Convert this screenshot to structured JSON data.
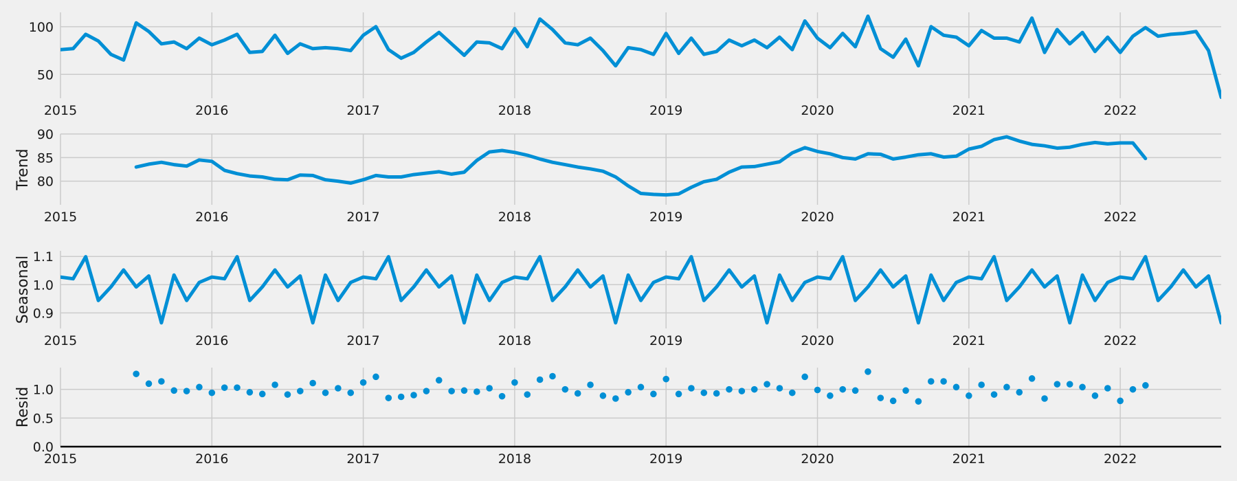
{
  "chart_data": {
    "type": "line",
    "title": "",
    "x": {
      "start": "2015-01",
      "frequency": "monthly",
      "xlim": [
        "2015-01",
        "2022-09"
      ],
      "tick_labels": [
        "2015",
        "2016",
        "2017",
        "2018",
        "2019",
        "2020",
        "2021",
        "2022"
      ]
    },
    "style": {
      "accent": "#008fd5",
      "background": "#f0f0f0",
      "grid": "#cbcbcb",
      "baseline": "#000000"
    },
    "panels": [
      {
        "ylabel": "",
        "kind": "line",
        "ylim": [
          25,
          115
        ],
        "yticks": [
          50,
          100
        ],
        "ytick_labels": [
          "50",
          "100"
        ],
        "start": "2015-01",
        "values": [
          76,
          77,
          92,
          85,
          71,
          65,
          104,
          95,
          82,
          84,
          77,
          88,
          81,
          86,
          92,
          73,
          74,
          91,
          72,
          82,
          77,
          78,
          77,
          75,
          91,
          100,
          76,
          67,
          73,
          84,
          94,
          82,
          70,
          84,
          83,
          77,
          98,
          79,
          108,
          97,
          83,
          81,
          88,
          75,
          59,
          78,
          76,
          71,
          93,
          72,
          88,
          71,
          74,
          86,
          80,
          86,
          78,
          89,
          76,
          106,
          88,
          78,
          93,
          79,
          111,
          77,
          68,
          87,
          59,
          100,
          91,
          89,
          80,
          96,
          88,
          88,
          84,
          109,
          73,
          97,
          82,
          94,
          74,
          89,
          73,
          90,
          99,
          90,
          92,
          93,
          95,
          75,
          26
        ]
      },
      {
        "ylabel": "Trend",
        "kind": "line",
        "ylim": [
          75,
          90
        ],
        "yticks": [
          80,
          85,
          90
        ],
        "ytick_labels": [
          "80",
          "85",
          "90"
        ],
        "start": "2015-07",
        "values": [
          83.0,
          83.6,
          84.0,
          83.5,
          83.2,
          84.5,
          84.2,
          82.3,
          81.6,
          81.1,
          80.9,
          80.4,
          80.3,
          81.3,
          81.2,
          80.3,
          80.0,
          79.6,
          80.3,
          81.2,
          80.9,
          80.9,
          81.4,
          81.7,
          82.0,
          81.5,
          81.9,
          84.4,
          86.2,
          86.5,
          86.1,
          85.5,
          84.7,
          84.0,
          83.5,
          83.0,
          82.6,
          82.1,
          80.9,
          79.0,
          77.4,
          77.2,
          77.1,
          77.3,
          78.7,
          79.9,
          80.4,
          81.9,
          83.0,
          83.1,
          83.6,
          84.1,
          86.0,
          87.1,
          86.3,
          85.8,
          85.0,
          84.7,
          85.8,
          85.7,
          84.7,
          85.1,
          85.6,
          85.8,
          85.1,
          85.3,
          86.8,
          87.4,
          88.8,
          89.4,
          88.5,
          87.8,
          87.5,
          87.0,
          87.2,
          87.8,
          88.2,
          87.9,
          88.1,
          88.1,
          84.8
        ]
      },
      {
        "ylabel": "Seasonal",
        "kind": "line",
        "ylim": [
          0.845,
          1.12
        ],
        "yticks": [
          0.9,
          1.0,
          1.1
        ],
        "ytick_labels": [
          "0.9",
          "1.0",
          "1.1"
        ],
        "start": "2015-01",
        "pattern": [
          1.027,
          1.021,
          1.099,
          0.944,
          0.992,
          1.052,
          0.992,
          1.031,
          0.865,
          1.034,
          0.944,
          1.008
        ],
        "repeat_months": 93
      },
      {
        "ylabel": "Resid",
        "kind": "scatter",
        "ylim": [
          0.0,
          1.38
        ],
        "yticks": [
          0.0,
          0.5,
          1.0
        ],
        "ytick_labels": [
          "0.0",
          "0.5",
          "1.0"
        ],
        "baseline": 0.0,
        "start": "2015-07",
        "values": [
          1.27,
          1.1,
          1.14,
          0.98,
          0.97,
          1.04,
          0.94,
          1.03,
          1.03,
          0.95,
          0.92,
          1.08,
          0.91,
          0.97,
          1.11,
          0.94,
          1.02,
          0.94,
          1.12,
          1.22,
          0.85,
          0.87,
          0.9,
          0.97,
          1.16,
          0.97,
          0.98,
          0.96,
          1.02,
          0.88,
          1.12,
          0.91,
          1.17,
          1.23,
          1.0,
          0.93,
          1.08,
          0.89,
          0.84,
          0.95,
          1.04,
          0.92,
          1.18,
          0.92,
          1.02,
          0.94,
          0.93,
          1.0,
          0.97,
          1.0,
          1.09,
          1.02,
          0.94,
          1.22,
          0.99,
          0.89,
          1.0,
          0.98,
          1.31,
          0.85,
          0.8,
          0.98,
          0.79,
          1.14,
          1.14,
          1.04,
          0.89,
          1.08,
          0.91,
          1.04,
          0.95,
          1.19,
          0.84,
          1.09,
          1.09,
          1.04,
          0.89,
          1.02,
          0.8,
          1.0,
          1.07
        ]
      }
    ]
  }
}
